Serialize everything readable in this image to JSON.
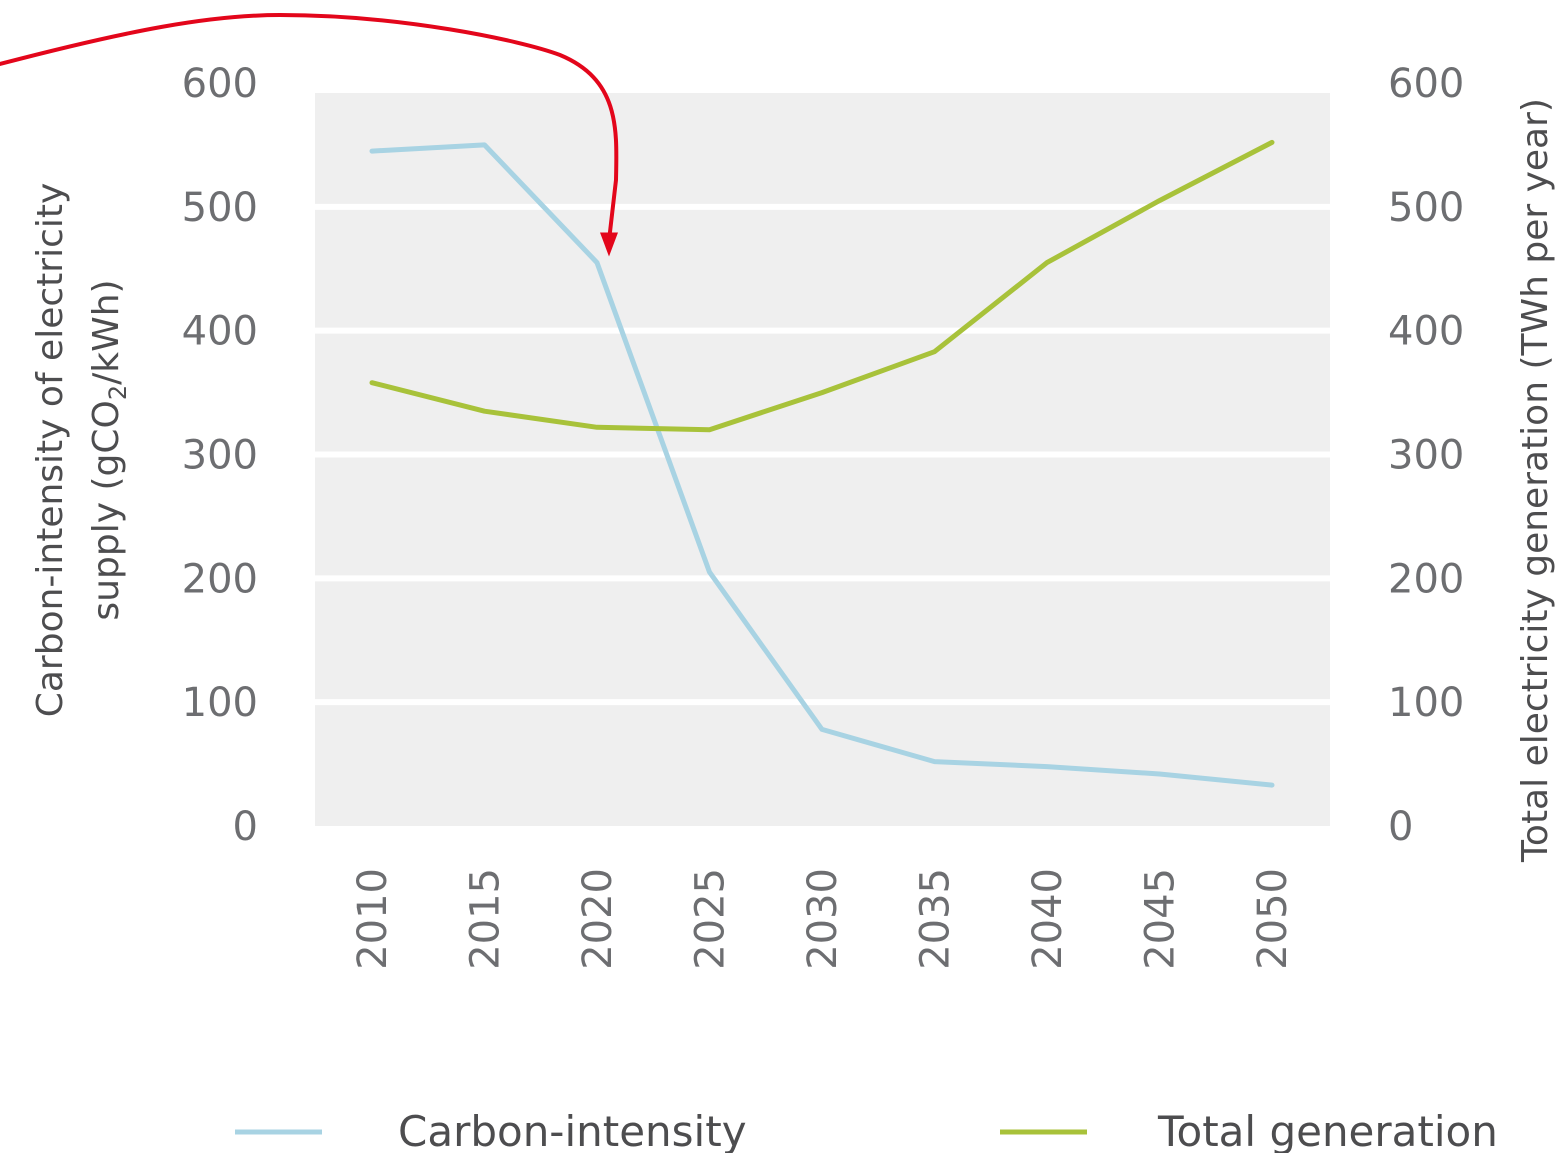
{
  "chart_data": {
    "type": "line",
    "x": [
      2010,
      2015,
      2020,
      2025,
      2030,
      2035,
      2040,
      2045,
      2050
    ],
    "series": [
      {
        "name": "Carbon-intensity",
        "axis": "left",
        "color": "#a8d3e3",
        "values": [
          545,
          550,
          455,
          205,
          78,
          52,
          48,
          42,
          33
        ]
      },
      {
        "name": "Total generation",
        "axis": "right",
        "color": "#a8c23a",
        "values": [
          358,
          335,
          322,
          320,
          350,
          383,
          455,
          505,
          552
        ]
      }
    ],
    "ylabel_left": "Carbon-intensity of electricity supply (gCO2/kWh)",
    "ylabel_left_lines": [
      "Carbon-intensity of electricity",
      "supply (gCO",
      "2",
      "/kWh)"
    ],
    "ylabel_right": "Total electricity generation (TWh per year)",
    "ylim_left": [
      0,
      600
    ],
    "ylim_right": [
      0,
      600
    ],
    "yticks": [
      0,
      100,
      200,
      300,
      400,
      500,
      600
    ],
    "xtick_labels": [
      "2010",
      "2015",
      "2020",
      "2025",
      "2030",
      "2035",
      "2040",
      "2045",
      "2050"
    ],
    "grid": true,
    "legend": "bottom",
    "annotation": {
      "type": "arrow",
      "color": "#e3061b",
      "target_year": 2020
    }
  }
}
